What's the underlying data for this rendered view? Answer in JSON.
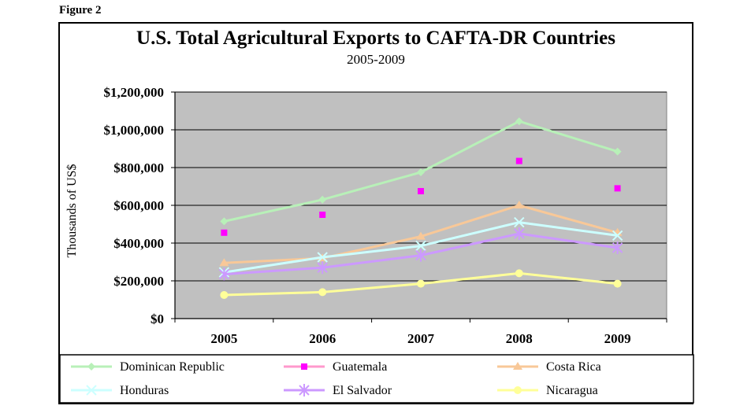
{
  "figure_label": "Figure 2",
  "chart_data": {
    "type": "line",
    "title": "U.S. Total Agricultural Exports to CAFTA-DR Countries",
    "subtitle": "2005-2009",
    "xlabel": "",
    "ylabel": "Thousands of US$",
    "categories": [
      "2005",
      "2006",
      "2007",
      "2008",
      "2009"
    ],
    "ylim": [
      0,
      1200000
    ],
    "yticks": [
      {
        "value": 0,
        "label": "$0"
      },
      {
        "value": 200000,
        "label": "$200,000"
      },
      {
        "value": 400000,
        "label": "$400,000"
      },
      {
        "value": 600000,
        "label": "$600,000"
      },
      {
        "value": 800000,
        "label": "$800,000"
      },
      {
        "value": 1000000,
        "label": "$1,000,000"
      },
      {
        "value": 1200000,
        "label": "$1,200,000"
      }
    ],
    "grid": true,
    "legend": "bottom",
    "series": [
      {
        "name": "Dominican Republic",
        "values": [
          515000,
          630000,
          775000,
          1045000,
          885000
        ],
        "color": "#b8f0b8",
        "marker": "diamond"
      },
      {
        "name": "Guatemala",
        "values": [
          455000,
          550000,
          675000,
          835000,
          690000
        ],
        "color": "#ff99cc",
        "markerColor": "#ff00ff",
        "marker": "square"
      },
      {
        "name": "Costa Rica",
        "values": [
          295000,
          320000,
          435000,
          600000,
          455000
        ],
        "color": "#f8c898",
        "marker": "triangle"
      },
      {
        "name": "Honduras",
        "values": [
          245000,
          325000,
          385000,
          510000,
          440000
        ],
        "color": "#ccffff",
        "marker": "x"
      },
      {
        "name": "El Salvador",
        "values": [
          235000,
          270000,
          335000,
          450000,
          375000
        ],
        "color": "#cc99ff",
        "marker": "star"
      },
      {
        "name": "Nicaragua",
        "values": [
          125000,
          140000,
          185000,
          240000,
          185000
        ],
        "color": "#ffff99",
        "marker": "circle"
      }
    ]
  }
}
